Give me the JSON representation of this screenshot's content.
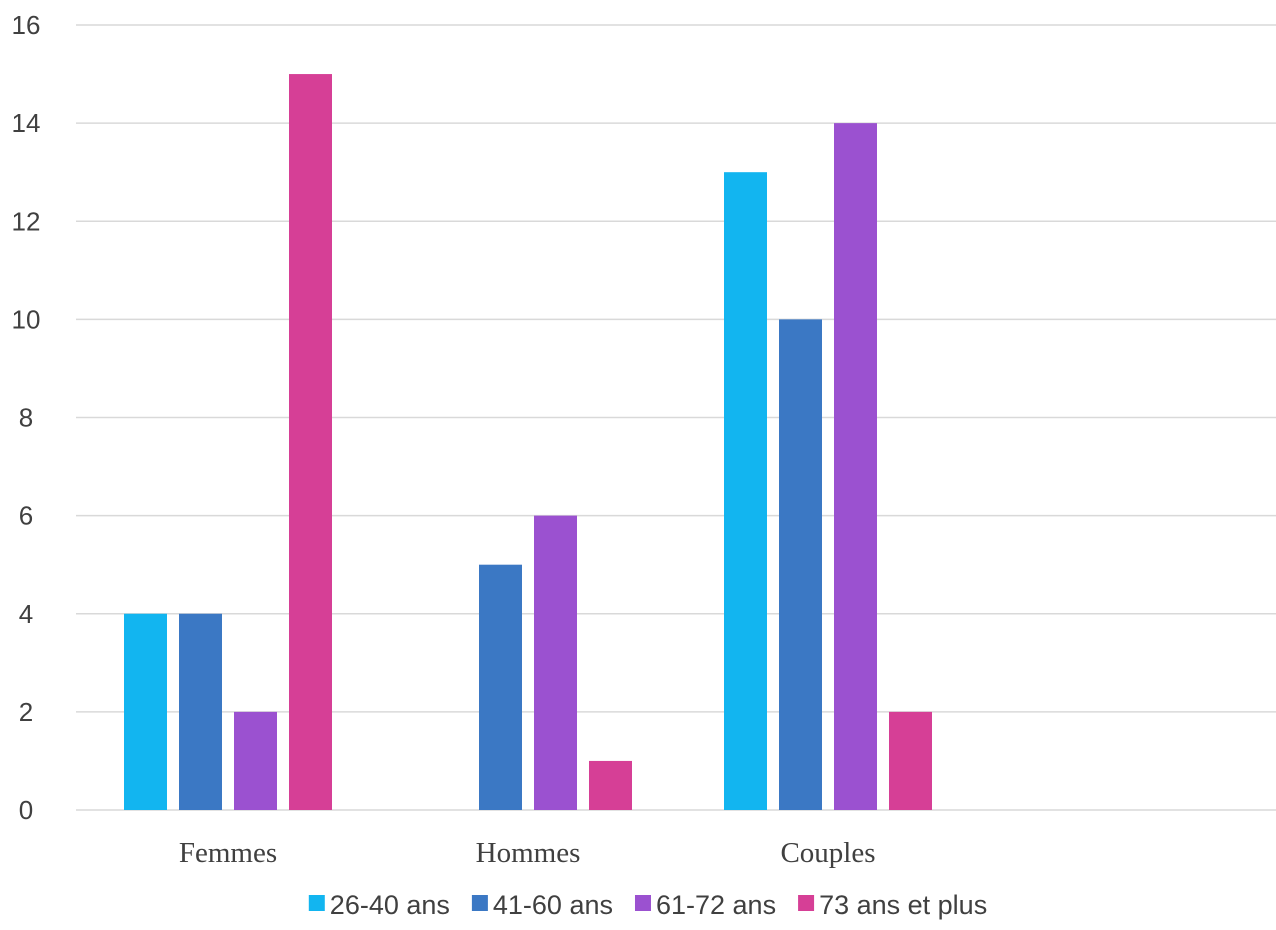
{
  "chart_data": {
    "type": "bar",
    "title": "",
    "xlabel": "",
    "ylabel": "",
    "ylim": [
      0,
      16
    ],
    "yticks": [
      "0",
      "2",
      "4",
      "6",
      "8",
      "10",
      "12",
      "14",
      "16"
    ],
    "grid": true,
    "legend_position": "bottom",
    "categories": [
      "Femmes",
      "Hommes",
      "Couples",
      ""
    ],
    "series": [
      {
        "name": "26-40 ans",
        "color": "#12b5f0",
        "values": [
          4,
          0,
          13,
          null
        ]
      },
      {
        "name": "41-60 ans",
        "color": "#3b78c4",
        "values": [
          4,
          5,
          10,
          null
        ]
      },
      {
        "name": "61-72 ans",
        "color": "#9b51d0",
        "values": [
          2,
          6,
          14,
          null
        ]
      },
      {
        "name": "73 ans et plus",
        "color": "#d63f96",
        "values": [
          15,
          1,
          2,
          null
        ]
      }
    ]
  }
}
